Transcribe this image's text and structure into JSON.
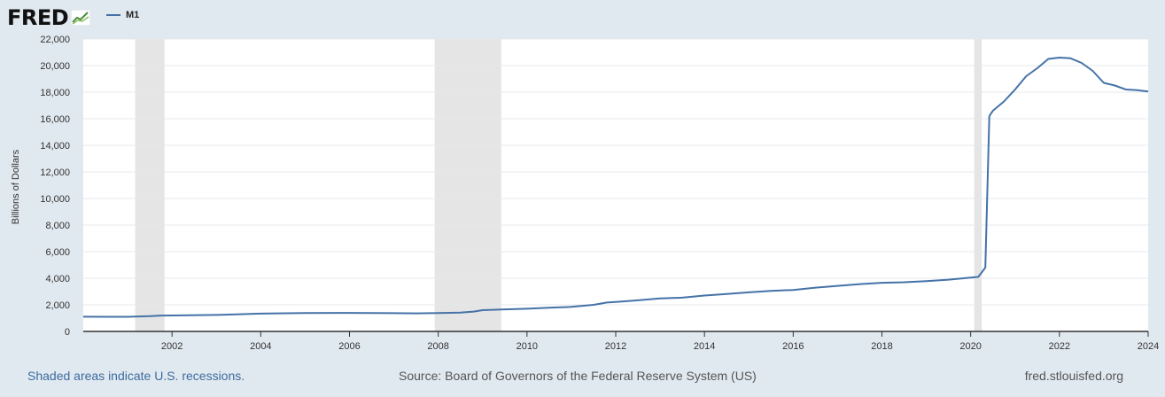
{
  "header": {
    "logo_text": "FRED",
    "logo_icon": "chart-line-icon",
    "legend_label": "M1",
    "series_color": "#4572a7"
  },
  "footer": {
    "recession_note": "Shaded areas indicate U.S. recessions.",
    "source": "Source: Board of Governors of the Federal Reserve System (US)",
    "site": "fred.stlouisfed.org"
  },
  "chart_data": {
    "type": "line",
    "title": "",
    "ylabel": "Billions of Dollars",
    "xlabel": "",
    "xlim": [
      2000.0,
      2024.0
    ],
    "ylim": [
      0,
      22000
    ],
    "grid": true,
    "legend_position": "top-left",
    "x_ticks": [
      "2002",
      "2004",
      "2006",
      "2008",
      "2010",
      "2012",
      "2014",
      "2016",
      "2018",
      "2020",
      "2022",
      "2024"
    ],
    "y_ticks": [
      "0",
      "2,000",
      "4,000",
      "6,000",
      "8,000",
      "10,000",
      "12,000",
      "14,000",
      "16,000",
      "18,000",
      "20,000",
      "22,000"
    ],
    "recessions": [
      {
        "start": 2001.17,
        "end": 2001.83
      },
      {
        "start": 2007.92,
        "end": 2009.42
      },
      {
        "start": 2020.08,
        "end": 2020.25
      }
    ],
    "series": [
      {
        "name": "M1",
        "color": "#4572a7",
        "x": [
          2000.0,
          2000.5,
          2001.0,
          2001.5,
          2001.75,
          2002.0,
          2003.0,
          2004.0,
          2005.0,
          2006.0,
          2007.0,
          2007.5,
          2008.0,
          2008.5,
          2008.8,
          2009.0,
          2009.5,
          2010.0,
          2010.5,
          2011.0,
          2011.5,
          2011.8,
          2012.0,
          2012.5,
          2013.0,
          2013.5,
          2014.0,
          2014.5,
          2015.0,
          2015.5,
          2016.0,
          2016.5,
          2017.0,
          2017.5,
          2018.0,
          2018.5,
          2019.0,
          2019.5,
          2020.0,
          2020.17,
          2020.33,
          2020.42,
          2020.5,
          2020.75,
          2021.0,
          2021.25,
          2021.5,
          2021.75,
          2022.0,
          2022.25,
          2022.5,
          2022.75,
          2023.0,
          2023.25,
          2023.5,
          2023.75,
          2024.0
        ],
        "values": [
          1110,
          1100,
          1100,
          1150,
          1190,
          1200,
          1240,
          1340,
          1380,
          1390,
          1370,
          1360,
          1380,
          1420,
          1490,
          1600,
          1660,
          1710,
          1780,
          1850,
          2000,
          2170,
          2220,
          2340,
          2480,
          2540,
          2700,
          2820,
          2940,
          3050,
          3120,
          3290,
          3430,
          3560,
          3660,
          3700,
          3780,
          3890,
          4050,
          4100,
          4800,
          16200,
          16600,
          17300,
          18200,
          19200,
          19800,
          20500,
          20600,
          20550,
          20200,
          19600,
          18700,
          18500,
          18200,
          18150,
          18050
        ]
      }
    ]
  }
}
